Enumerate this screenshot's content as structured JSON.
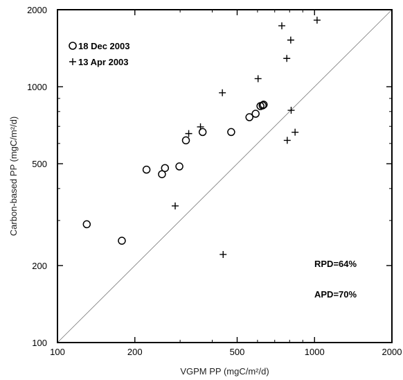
{
  "chart_data": {
    "type": "scatter",
    "x_scale": "log",
    "y_scale": "log",
    "xlim": [
      100,
      2000
    ],
    "ylim": [
      100,
      2000
    ],
    "xlabel": "VGPM PP (mgC/m²/d)",
    "ylabel": "Carbon-based PP (mgC/m²/d)",
    "x_ticks": [
      100,
      200,
      500,
      1000,
      2000
    ],
    "x_tick_labels": [
      "100",
      "200",
      "500",
      "1000",
      "2000"
    ],
    "y_ticks": [
      100,
      200,
      500,
      1000,
      2000
    ],
    "y_tick_labels": [
      "100",
      "200",
      "500",
      "1000",
      "2000"
    ],
    "reference_line": "1:1",
    "grid": false,
    "legend_position": "top-left",
    "series": [
      {
        "name": "18 Dec 2003",
        "marker": "open-circle",
        "points": [
          [
            130,
            290
          ],
          [
            178,
            250
          ],
          [
            222,
            474
          ],
          [
            255,
            455
          ],
          [
            262,
            481
          ],
          [
            298,
            488
          ],
          [
            316,
            617
          ],
          [
            367,
            665
          ],
          [
            474,
            665
          ],
          [
            558,
            760
          ],
          [
            590,
            784
          ],
          [
            616,
            840
          ],
          [
            628,
            845
          ],
          [
            634,
            851
          ]
        ]
      },
      {
        "name": "13 Apr 2003",
        "marker": "plus",
        "points": [
          [
            287,
            342
          ],
          [
            324,
            656
          ],
          [
            360,
            697
          ],
          [
            438,
            947
          ],
          [
            441,
            221
          ],
          [
            603,
            1075
          ],
          [
            746,
            1730
          ],
          [
            780,
            1290
          ],
          [
            783,
            617
          ],
          [
            808,
            1522
          ],
          [
            811,
            809
          ],
          [
            840,
            664
          ],
          [
            1023,
            1820
          ]
        ]
      }
    ],
    "annotations": [
      "RPD=64%",
      "APD=70%"
    ]
  }
}
